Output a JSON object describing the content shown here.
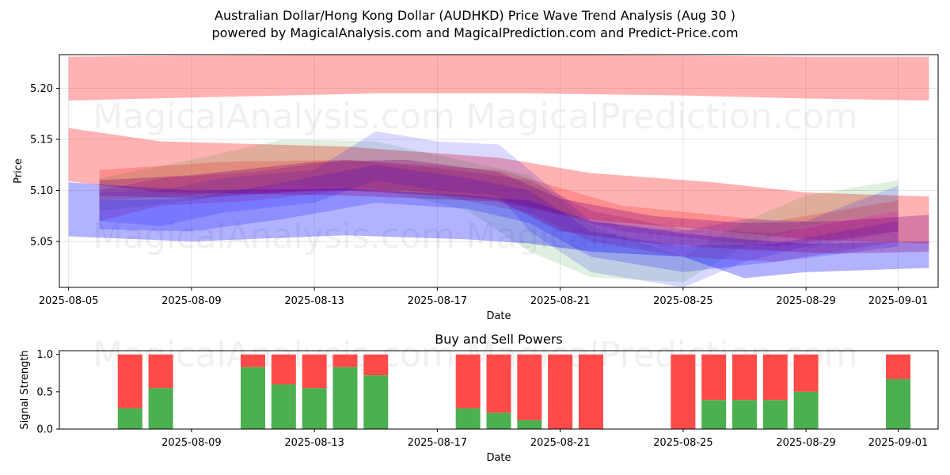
{
  "title": "Australian Dollar/Hong Kong Dollar (AUDHKD) Price Wave Trend Analysis (Aug 30 )",
  "subtitle": "powered by MagicalAnalysis.com and MagicalPrediction.com and Predict-Price.com",
  "watermarks": [
    "MagicalAnalysis.com",
    "MagicalPrediction.com"
  ],
  "colors": {
    "red": "#ff0000",
    "green": "#008000",
    "blue": "#0000ff",
    "purple": "#800080",
    "buy": "#4caf50",
    "sell": "#ff4a4a"
  },
  "chart_data": [
    {
      "type": "area",
      "ylabel": "Price",
      "xlabel": "Date",
      "x_start": "2025-08-05",
      "x_end": "2025-09-02",
      "xlim": [
        "2025-08-05",
        "2025-09-02"
      ],
      "ylim": [
        5.005,
        5.233
      ],
      "yticks": [
        "5.05",
        "5.10",
        "5.15",
        "5.20"
      ],
      "xticks": [
        "2025-08-05",
        "2025-08-09",
        "2025-08-13",
        "2025-08-17",
        "2025-08-21",
        "2025-08-25",
        "2025-08-29",
        "2025-09-01"
      ],
      "grid": true,
      "series": [
        {
          "color": "red",
          "opacity": 0.3,
          "x": [
            "2025-08-05",
            "2025-08-09",
            "2025-08-15",
            "2025-08-20",
            "2025-08-25",
            "2025-08-29",
            "2025-09-02"
          ],
          "upper": [
            5.231,
            5.232,
            5.233,
            5.233,
            5.232,
            5.231,
            5.231
          ],
          "lower": [
            5.188,
            5.191,
            5.195,
            5.195,
            5.193,
            5.19,
            5.188
          ]
        },
        {
          "color": "red",
          "opacity": 0.3,
          "x": [
            "2025-08-05",
            "2025-08-08",
            "2025-08-14",
            "2025-08-19",
            "2025-08-22",
            "2025-08-26",
            "2025-08-29",
            "2025-09-02"
          ],
          "upper": [
            5.161,
            5.148,
            5.143,
            5.132,
            5.117,
            5.108,
            5.098,
            5.094
          ],
          "lower": [
            5.109,
            5.098,
            5.095,
            5.089,
            5.071,
            5.061,
            5.052,
            5.048
          ]
        },
        {
          "color": "red",
          "opacity": 0.2,
          "x": [
            "2025-08-06",
            "2025-08-10",
            "2025-08-14",
            "2025-08-19",
            "2025-08-23",
            "2025-08-28",
            "2025-09-01"
          ],
          "upper": [
            5.12,
            5.128,
            5.13,
            5.12,
            5.085,
            5.07,
            5.09
          ],
          "lower": [
            5.09,
            5.097,
            5.1,
            5.092,
            5.06,
            5.045,
            5.06
          ]
        },
        {
          "color": "green",
          "opacity": 0.12,
          "x": [
            "2025-08-06",
            "2025-08-09",
            "2025-08-12",
            "2025-08-15",
            "2025-08-18",
            "2025-08-20",
            "2025-08-22",
            "2025-08-25",
            "2025-08-27",
            "2025-08-29",
            "2025-09-01"
          ],
          "upper": [
            5.112,
            5.13,
            5.15,
            5.148,
            5.128,
            5.115,
            5.065,
            5.035,
            5.07,
            5.095,
            5.11
          ],
          "lower": [
            5.08,
            5.09,
            5.105,
            5.102,
            5.08,
            5.04,
            5.015,
            5.01,
            5.045,
            5.065,
            5.08
          ]
        },
        {
          "color": "blue",
          "opacity": 0.3,
          "x": [
            "2025-08-05",
            "2025-08-09",
            "2025-08-14",
            "2025-08-18",
            "2025-08-20",
            "2025-08-22",
            "2025-08-25",
            "2025-08-27",
            "2025-08-29",
            "2025-09-02"
          ],
          "upper": [
            5.108,
            5.1,
            5.102,
            5.095,
            5.09,
            5.07,
            5.058,
            5.052,
            5.048,
            5.05
          ],
          "lower": [
            5.055,
            5.05,
            5.056,
            5.052,
            5.048,
            5.04,
            5.035,
            5.014,
            5.02,
            5.024
          ]
        },
        {
          "color": "blue",
          "opacity": 0.15,
          "x": [
            "2025-08-06",
            "2025-08-08",
            "2025-08-10",
            "2025-08-13",
            "2025-08-15",
            "2025-08-17",
            "2025-08-19",
            "2025-08-20",
            "2025-08-22",
            "2025-08-25",
            "2025-08-27",
            "2025-08-29",
            "2025-09-01"
          ],
          "upper": [
            5.098,
            5.1,
            5.112,
            5.12,
            5.158,
            5.148,
            5.145,
            5.12,
            5.07,
            5.06,
            5.072,
            5.07,
            5.105
          ],
          "lower": [
            5.07,
            5.065,
            5.078,
            5.088,
            5.11,
            5.1,
            5.095,
            5.06,
            5.02,
            5.005,
            5.03,
            5.045,
            5.06
          ]
        },
        {
          "color": "blue",
          "opacity": 0.2,
          "x": [
            "2025-08-06",
            "2025-08-09",
            "2025-08-12",
            "2025-08-15",
            "2025-08-18",
            "2025-08-20",
            "2025-08-22",
            "2025-08-25",
            "2025-08-28",
            "2025-09-01"
          ],
          "upper": [
            5.09,
            5.092,
            5.108,
            5.125,
            5.112,
            5.1,
            5.06,
            5.045,
            5.048,
            5.07
          ],
          "lower": [
            5.062,
            5.06,
            5.072,
            5.088,
            5.082,
            5.068,
            5.035,
            5.02,
            5.03,
            5.045
          ]
        },
        {
          "color": "purple",
          "opacity": 0.3,
          "x": [
            "2025-08-06",
            "2025-08-09",
            "2025-08-13",
            "2025-08-16",
            "2025-08-19",
            "2025-08-21",
            "2025-08-24",
            "2025-08-27",
            "2025-08-30",
            "2025-09-02"
          ],
          "upper": [
            5.11,
            5.115,
            5.128,
            5.13,
            5.118,
            5.092,
            5.075,
            5.068,
            5.07,
            5.076
          ],
          "lower": [
            5.095,
            5.092,
            5.1,
            5.1,
            5.09,
            5.06,
            5.048,
            5.042,
            5.038,
            5.04
          ]
        },
        {
          "color": "purple",
          "opacity": 0.2,
          "x": [
            "2025-08-06",
            "2025-08-08",
            "2025-08-11",
            "2025-08-14",
            "2025-08-17",
            "2025-08-20",
            "2025-08-22",
            "2025-08-25",
            "2025-08-28",
            "2025-09-01"
          ],
          "upper": [
            5.1,
            5.112,
            5.118,
            5.13,
            5.122,
            5.11,
            5.08,
            5.062,
            5.058,
            5.08
          ],
          "lower": [
            5.07,
            5.085,
            5.09,
            5.1,
            5.095,
            5.078,
            5.05,
            5.035,
            5.03,
            5.05
          ]
        }
      ]
    },
    {
      "type": "bar",
      "title": "Buy and Sell Powers",
      "ylabel": "Signal Strength",
      "xlabel": "Date",
      "xlim": [
        "2025-08-05",
        "2025-09-02"
      ],
      "ylim": [
        0,
        1.05
      ],
      "yticks": [
        "0.0",
        "0.5",
        "1.0"
      ],
      "xticks": [
        "2025-08-09",
        "2025-08-13",
        "2025-08-17",
        "2025-08-21",
        "2025-08-25",
        "2025-08-29",
        "2025-09-01"
      ],
      "categories": [
        "2025-08-07",
        "2025-08-08",
        "2025-08-11",
        "2025-08-12",
        "2025-08-13",
        "2025-08-14",
        "2025-08-15",
        "2025-08-18",
        "2025-08-19",
        "2025-08-20",
        "2025-08-21",
        "2025-08-22",
        "2025-08-25",
        "2025-08-26",
        "2025-08-27",
        "2025-08-28",
        "2025-08-29",
        "2025-09-01"
      ],
      "series": [
        {
          "name": "Buy",
          "values": [
            0.28,
            0.55,
            0.83,
            0.6,
            0.55,
            0.83,
            0.72,
            0.28,
            0.22,
            0.12,
            0,
            0,
            0,
            0.39,
            0.39,
            0.39,
            0.5,
            0.67
          ]
        },
        {
          "name": "Sell",
          "values": [
            0.72,
            0.45,
            0.17,
            0.4,
            0.45,
            0.17,
            0.28,
            0.72,
            0.78,
            0.88,
            1,
            1,
            1,
            0.61,
            0.61,
            0.61,
            0.5,
            0.33
          ]
        }
      ]
    }
  ]
}
